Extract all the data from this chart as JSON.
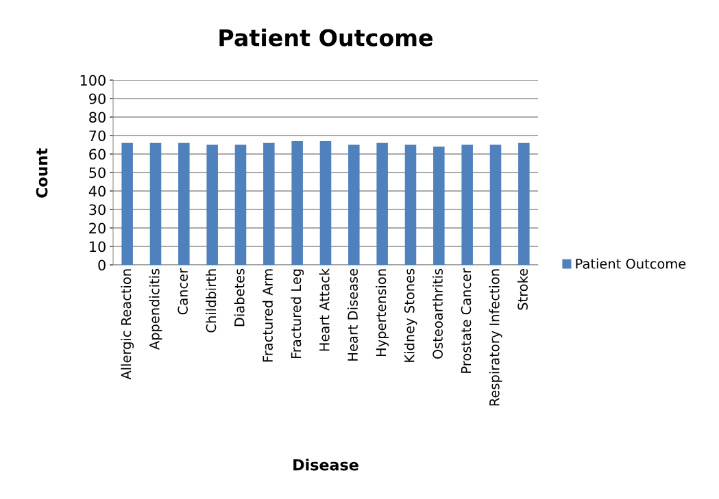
{
  "chart_data": {
    "type": "bar",
    "title": "Patient Outcome",
    "xlabel": "Disease",
    "ylabel": "Count",
    "categories": [
      "Allergic Reaction",
      "Appendicitis",
      "Cancer",
      "Childbirth",
      "Diabetes",
      "Fractured Arm",
      "Fractured Leg",
      "Heart Attack",
      "Heart Disease",
      "Hypertension",
      "Kidney Stones",
      "Osteoarthritis",
      "Prostate Cancer",
      "Respiratory Infection",
      "Stroke"
    ],
    "series": [
      {
        "name": "Patient Outcome",
        "color": "#4f81bd",
        "values": [
          66,
          66,
          66,
          65,
          65,
          66,
          67,
          67,
          65,
          66,
          65,
          64,
          65,
          65,
          66
        ]
      }
    ],
    "ylim": [
      0,
      100
    ],
    "yticks": [
      0,
      10,
      20,
      30,
      40,
      50,
      60,
      70,
      80,
      90,
      100
    ],
    "grid": "y",
    "legend": "right"
  }
}
